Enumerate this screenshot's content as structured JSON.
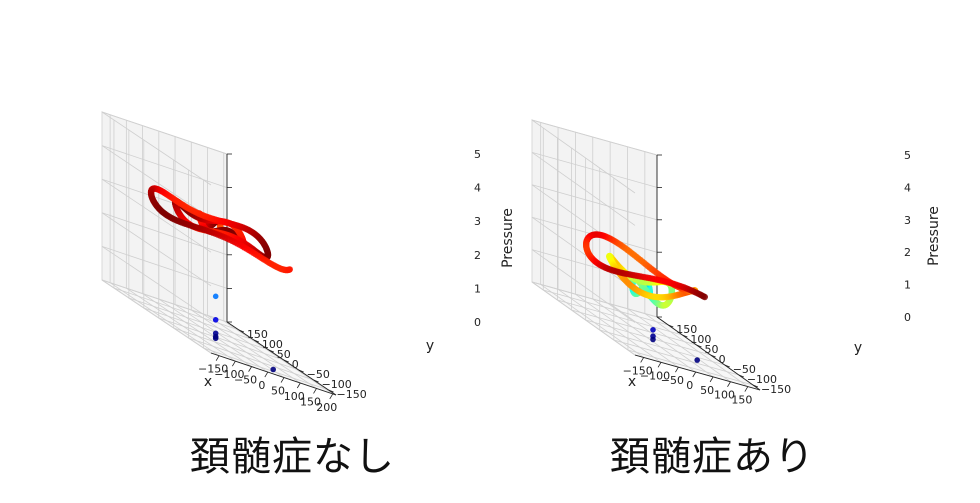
{
  "captions": {
    "left": "頚髄症なし",
    "right": "頚髄症あり"
  },
  "chart_data": [
    {
      "type": "scatter",
      "projection": "3d",
      "title": "頚髄症なし",
      "xlabel": "x",
      "ylabel": "y",
      "zlabel": "Pressure",
      "xlim": [
        -175,
        210
      ],
      "ylim": [
        -175,
        190
      ],
      "zlim": [
        0,
        5
      ],
      "xticks": [
        "−150",
        "−100",
        "−50",
        "0",
        "50",
        "100",
        "150",
        "200"
      ],
      "yticks": [
        "−150",
        "−100",
        "−50",
        "0",
        "50",
        "100",
        "150"
      ],
      "zticks": [
        "0",
        "1",
        "2",
        "3",
        "4",
        "5"
      ],
      "xtick_values": [
        -150,
        -100,
        -50,
        0,
        50,
        100,
        150,
        200
      ],
      "ytick_values": [
        -150,
        -100,
        -50,
        0,
        50,
        100,
        150
      ],
      "grid": true,
      "colormap": "jet (pressure)",
      "series": [
        {
          "kind": "spiral",
          "center": [
            0,
            0
          ],
          "radius_start": 15,
          "radius_growth_per_turn": 55,
          "turns": 2.85,
          "pressure": 3.3
        },
        {
          "kind": "points",
          "points": [
            [
              5,
              5,
              1.2
            ],
            [
              5,
              5,
              0.5
            ],
            [
              5,
              5,
              0.1
            ],
            [
              5,
              5,
              0.0
            ],
            [
              5,
              5,
              -0.05
            ],
            [
              150,
              -30,
              -0.3
            ]
          ]
        }
      ]
    },
    {
      "type": "scatter",
      "projection": "3d",
      "title": "頚髄症あり",
      "xlabel": "x",
      "ylabel": "y",
      "zlabel": "Pressure",
      "xlim": [
        -175,
        185
      ],
      "ylim": [
        -175,
        190
      ],
      "zlim": [
        0,
        5
      ],
      "xticks": [
        "−150",
        "−100",
        "−50",
        "0",
        "50",
        "100",
        "150"
      ],
      "yticks": [
        "−150",
        "−100",
        "−50",
        "0",
        "50",
        "100",
        "150"
      ],
      "zticks": [
        "0",
        "1",
        "2",
        "3",
        "4",
        "5"
      ],
      "xtick_values": [
        -150,
        -100,
        -50,
        0,
        50,
        100,
        150
      ],
      "ytick_values": [
        -150,
        -100,
        -50,
        0,
        50,
        100,
        150
      ],
      "grid": true,
      "colormap": "jet (pressure)",
      "series": [
        {
          "kind": "spiral",
          "center": [
            0,
            0
          ],
          "radius_start": 10,
          "radius_growth_per_turn": 52,
          "turns": 2.8,
          "pressure_start": 1.3,
          "pressure_end": 2.2
        },
        {
          "kind": "points",
          "points": [
            [
              15,
              -5,
              0.3
            ],
            [
              15,
              -5,
              0.1
            ],
            [
              15,
              -5,
              0.0
            ],
            [
              130,
              -20,
              -0.2
            ]
          ]
        }
      ]
    }
  ]
}
